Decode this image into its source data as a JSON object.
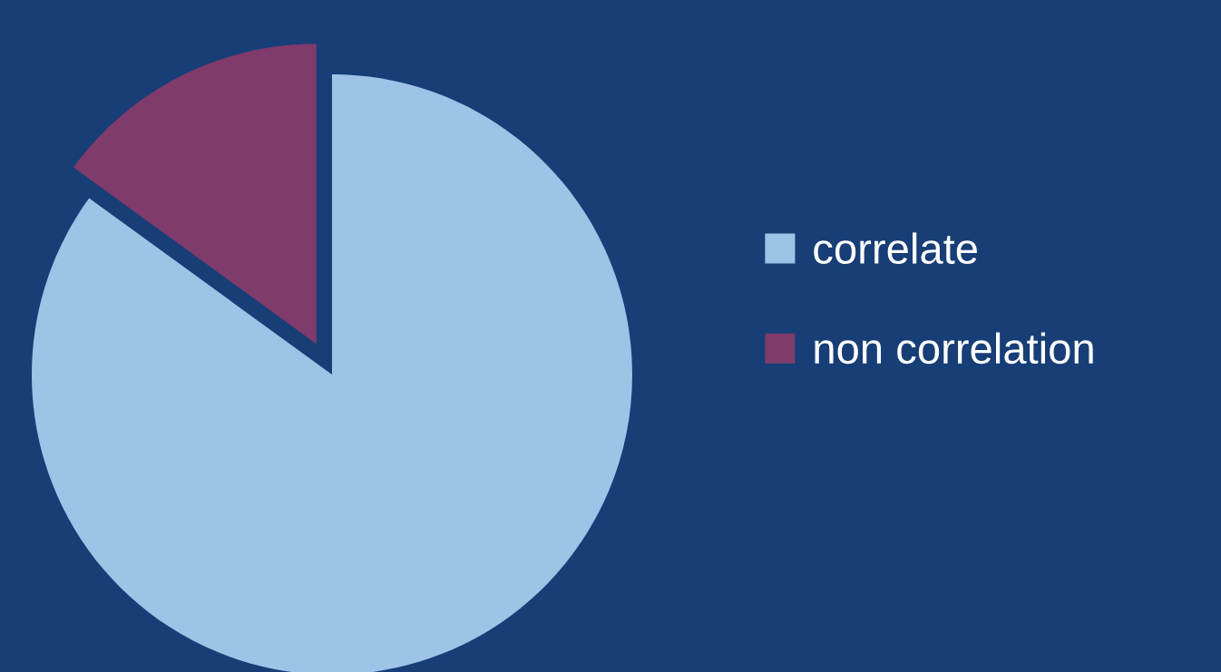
{
  "chart_data": {
    "type": "pie",
    "categories": [
      "correlate",
      "non correlation"
    ],
    "values": [
      85,
      15
    ],
    "colors": [
      "#9dc3e6",
      "#7f3b6b"
    ],
    "legend": "right"
  }
}
